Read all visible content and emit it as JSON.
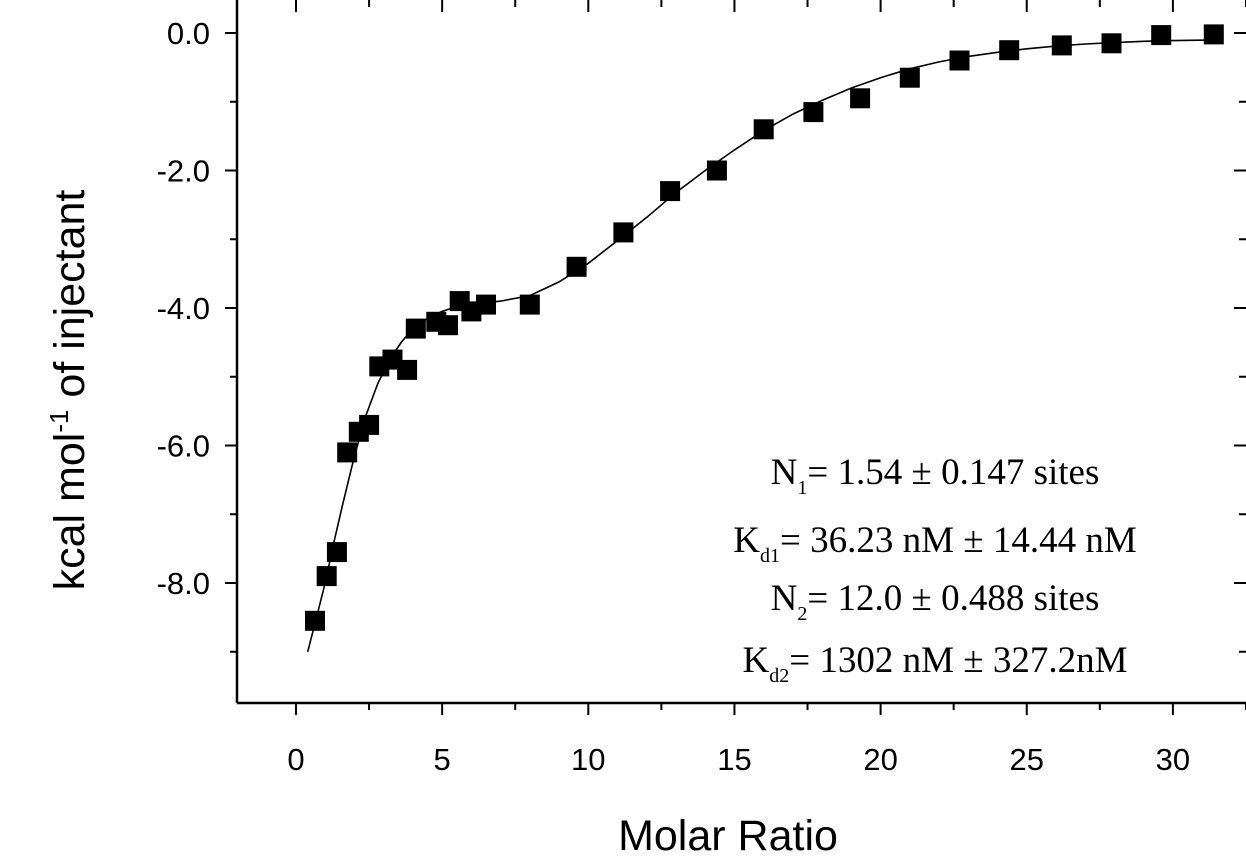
{
  "chart_data": {
    "type": "scatter",
    "xlabel": "Molar Ratio",
    "ylabel_main": "kcal mol",
    "ylabel_sup": "-1",
    "ylabel_rest": " of injectant",
    "xlim": [
      -2,
      33
    ],
    "ylim": [
      -9.7,
      0.45
    ],
    "xticks": [
      0,
      5,
      10,
      15,
      20,
      25,
      30
    ],
    "xtick_labels": [
      "0",
      "5",
      "10",
      "15",
      "20",
      "25",
      "30"
    ],
    "yticks": [
      0,
      -2,
      -4,
      -6,
      -8
    ],
    "ytick_labels": [
      "0.0",
      "-2.0",
      "-4.0",
      "-6.0",
      "-8.0"
    ],
    "marker_color": "#000000",
    "series": [
      {
        "kind": "points",
        "x": [
          0.65,
          1.05,
          1.4,
          1.75,
          2.15,
          2.5,
          2.85,
          3.3,
          3.8,
          4.1,
          4.8,
          5.2,
          5.6,
          6.0,
          6.5,
          8.0,
          9.6,
          11.2,
          12.8,
          14.4,
          16.0,
          17.7,
          19.3,
          21.0,
          22.7,
          24.4,
          26.2,
          27.9,
          29.6,
          31.4
        ],
        "y": [
          -8.55,
          -7.9,
          -7.55,
          -6.1,
          -5.8,
          -5.7,
          -4.85,
          -4.75,
          -4.9,
          -4.3,
          -4.2,
          -4.25,
          -3.9,
          -4.05,
          -3.95,
          -3.95,
          -3.4,
          -2.9,
          -2.3,
          -2.0,
          -1.4,
          -1.15,
          -0.95,
          -0.65,
          -0.4,
          -0.25,
          -0.18,
          -0.15,
          -0.03,
          -0.02
        ]
      },
      {
        "kind": "fit",
        "x": [
          0.4,
          0.7,
          1.0,
          1.3,
          1.6,
          2.0,
          2.4,
          2.8,
          3.2,
          3.6,
          4.0,
          4.5,
          5.0,
          5.5,
          6.0,
          7.0,
          8.0,
          9.0,
          10.0,
          11.0,
          12.0,
          13.0,
          14.0,
          15.0,
          16.0,
          17.0,
          18.0,
          19.0,
          20.0,
          21.0,
          22.0,
          23.0,
          24.0,
          25.0,
          26.0,
          27.0,
          28.0,
          29.0,
          30.0,
          31.5
        ],
        "y": [
          -9.0,
          -8.5,
          -8.0,
          -7.4,
          -6.85,
          -6.15,
          -5.55,
          -5.1,
          -4.75,
          -4.5,
          -4.3,
          -4.15,
          -4.05,
          -3.98,
          -3.95,
          -3.9,
          -3.82,
          -3.62,
          -3.35,
          -3.02,
          -2.68,
          -2.32,
          -2.0,
          -1.7,
          -1.42,
          -1.18,
          -0.98,
          -0.8,
          -0.65,
          -0.52,
          -0.42,
          -0.34,
          -0.28,
          -0.23,
          -0.19,
          -0.16,
          -0.14,
          -0.12,
          -0.11,
          -0.1
        ]
      }
    ],
    "annotations": [
      {
        "main": "N",
        "sub": "1",
        "rest": "= 1.54 ± 0.147 sites"
      },
      {
        "main": "K",
        "sub": "d1",
        "rest": "= 36.23 nM ± 14.44 nM"
      },
      {
        "main": "N",
        "sub": "2",
        "rest": "= 12.0 ± 0.488 sites"
      },
      {
        "main": "K",
        "sub": "d2",
        "rest": "= 1302 nM ± 327.2nM"
      }
    ]
  }
}
